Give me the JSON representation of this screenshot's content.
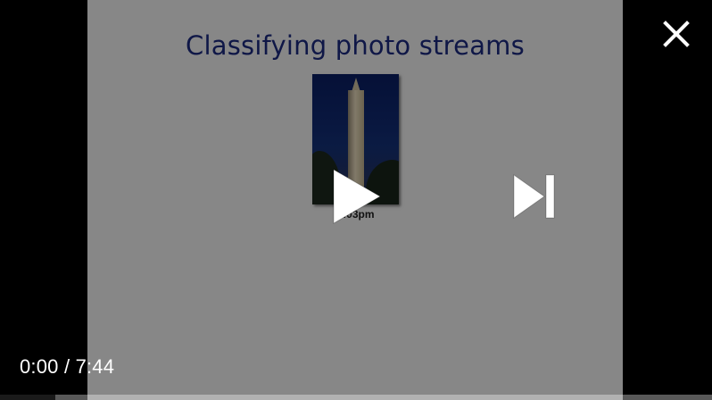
{
  "slide": {
    "title": "Classifying photo streams",
    "photo_caption": "5:03pm"
  },
  "player": {
    "current_time": "0:00",
    "separator": "/",
    "duration": "7:44",
    "progress_fraction": 0.0
  },
  "icons": {
    "close": "close-icon",
    "play": "play-icon",
    "next": "skip-next-icon"
  },
  "colors": {
    "slide_title": "#1d2c86",
    "overlay_text": "#ffffff",
    "letterbox": "#000000"
  }
}
